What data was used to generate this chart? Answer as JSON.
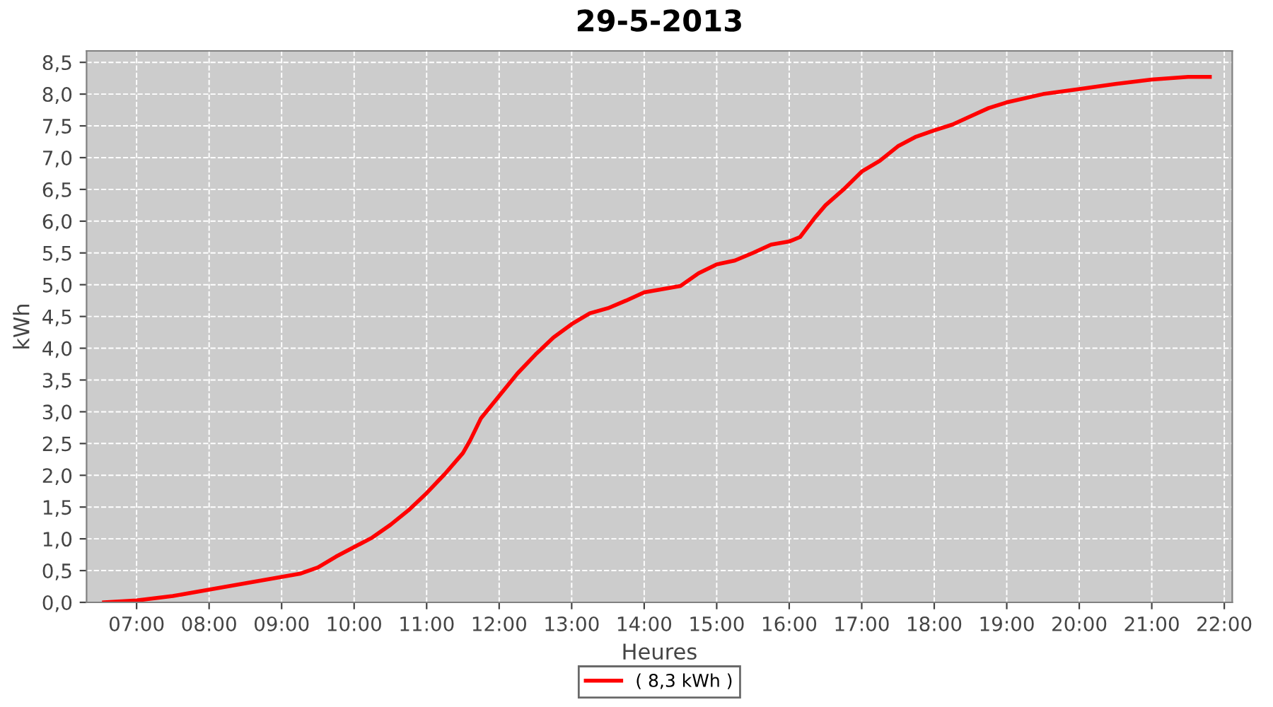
{
  "chart_data": {
    "type": "line",
    "title": "29-5-2013",
    "xlabel": "Heures",
    "ylabel": "kWh",
    "x": [
      6.55,
      7.0,
      7.5,
      8.0,
      8.5,
      9.0,
      9.25,
      9.5,
      9.75,
      10.0,
      10.25,
      10.5,
      10.75,
      11.0,
      11.25,
      11.5,
      11.6,
      11.75,
      12.0,
      12.25,
      12.5,
      12.75,
      13.0,
      13.25,
      13.5,
      13.75,
      14.0,
      14.25,
      14.5,
      14.75,
      15.0,
      15.25,
      15.5,
      15.75,
      16.0,
      16.15,
      16.35,
      16.5,
      16.75,
      17.0,
      17.25,
      17.5,
      17.75,
      18.0,
      18.25,
      18.5,
      18.75,
      19.0,
      19.5,
      20.0,
      20.5,
      21.0,
      21.5,
      21.8
    ],
    "series": [
      {
        "name": "( 8,3 kWh )",
        "color": "#ff0000",
        "values": [
          0.0,
          0.03,
          0.1,
          0.2,
          0.3,
          0.4,
          0.45,
          0.55,
          0.72,
          0.87,
          1.02,
          1.22,
          1.45,
          1.72,
          2.02,
          2.35,
          2.55,
          2.9,
          3.25,
          3.6,
          3.9,
          4.17,
          4.38,
          4.55,
          4.63,
          4.75,
          4.88,
          4.93,
          4.98,
          5.18,
          5.32,
          5.38,
          5.5,
          5.63,
          5.68,
          5.75,
          6.05,
          6.25,
          6.5,
          6.78,
          6.95,
          7.18,
          7.33,
          7.43,
          7.52,
          7.65,
          7.78,
          7.87,
          8.0,
          8.08,
          8.16,
          8.23,
          8.27,
          8.27
        ]
      }
    ],
    "xlim": [
      6.31,
      22.11
    ],
    "xticks": [
      {
        "value": 7,
        "label": "07:00"
      },
      {
        "value": 8,
        "label": "08:00"
      },
      {
        "value": 9,
        "label": "09:00"
      },
      {
        "value": 10,
        "label": "10:00"
      },
      {
        "value": 11,
        "label": "11:00"
      },
      {
        "value": 12,
        "label": "12:00"
      },
      {
        "value": 13,
        "label": "13:00"
      },
      {
        "value": 14,
        "label": "14:00"
      },
      {
        "value": 15,
        "label": "15:00"
      },
      {
        "value": 16,
        "label": "16:00"
      },
      {
        "value": 17,
        "label": "17:00"
      },
      {
        "value": 18,
        "label": "18:00"
      },
      {
        "value": 19,
        "label": "19:00"
      },
      {
        "value": 20,
        "label": "20:00"
      },
      {
        "value": 21,
        "label": "21:00"
      },
      {
        "value": 22,
        "label": "22:00"
      }
    ],
    "ylim": [
      0,
      8.68
    ],
    "yticks": [
      {
        "value": 0,
        "label": "0,0"
      },
      {
        "value": 0.5,
        "label": "0,5"
      },
      {
        "value": 1,
        "label": "1,0"
      },
      {
        "value": 1.5,
        "label": "1,5"
      },
      {
        "value": 2,
        "label": "2,0"
      },
      {
        "value": 2.5,
        "label": "2,5"
      },
      {
        "value": 3,
        "label": "3,0"
      },
      {
        "value": 3.5,
        "label": "3,5"
      },
      {
        "value": 4,
        "label": "4,0"
      },
      {
        "value": 4.5,
        "label": "4,5"
      },
      {
        "value": 5,
        "label": "5,0"
      },
      {
        "value": 5.5,
        "label": "5,5"
      },
      {
        "value": 6,
        "label": "6,0"
      },
      {
        "value": 6.5,
        "label": "6,5"
      },
      {
        "value": 7,
        "label": "7,0"
      },
      {
        "value": 7.5,
        "label": "7,5"
      },
      {
        "value": 8,
        "label": "8,0"
      },
      {
        "value": 8.5,
        "label": "8,5"
      }
    ],
    "grid": true,
    "legend": "bottom",
    "line_style": "solid",
    "marker": "none"
  }
}
